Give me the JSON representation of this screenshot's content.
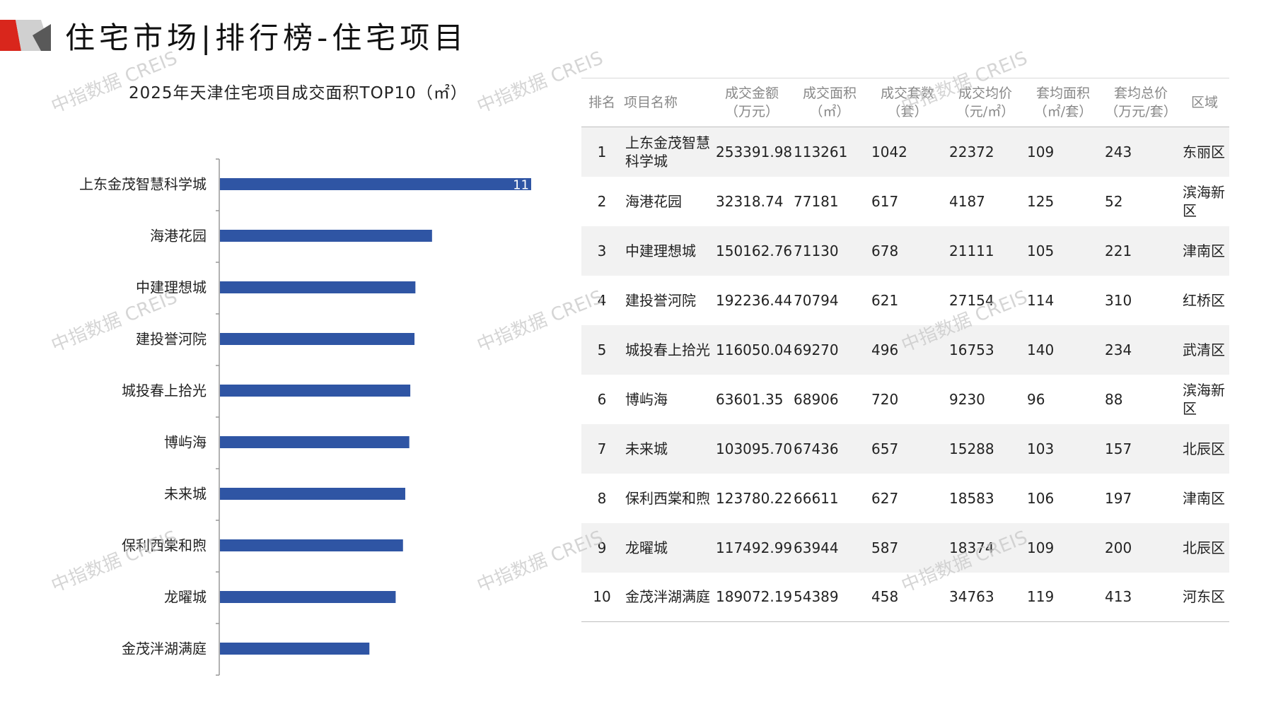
{
  "header": {
    "title": "住宅市场|排行榜-住宅项目",
    "logo_colors": {
      "red": "#d9261c",
      "gray": "#a6a6a6",
      "dark": "#595959"
    }
  },
  "watermark": {
    "text": "中指数据 CREIS"
  },
  "chart_data": {
    "type": "bar",
    "orientation": "horizontal",
    "title": "2025年天津住宅项目成交面积TOP10（㎡）",
    "categories": [
      "上东金茂智慧科学城",
      "海港花园",
      "中建理想城",
      "建投誉河院",
      "城投春上拾光",
      "博屿海",
      "未来城",
      "保利西棠和煦",
      "龙曜城",
      "金茂泮湖满庭"
    ],
    "values": [
      113261,
      77181,
      71130,
      70794,
      69270,
      68906,
      67436,
      66611,
      63944,
      54389
    ],
    "xlim": [
      0,
      113261
    ],
    "data_labels": [
      "11",
      "",
      "",
      "",
      "",
      "",
      "",
      "",
      "",
      ""
    ],
    "bar_color": "#2f55a4",
    "grid": false,
    "legend": "none"
  },
  "table": {
    "headers": [
      {
        "line1": "排名",
        "line2": ""
      },
      {
        "line1": "项目名称",
        "line2": ""
      },
      {
        "line1": "成交金额",
        "line2": "（万元）"
      },
      {
        "line1": "成交面积",
        "line2": "（㎡）"
      },
      {
        "line1": "成交套数",
        "line2": "（套）"
      },
      {
        "line1": "成交均价",
        "line2": "（元/㎡）"
      },
      {
        "line1": "套均面积",
        "line2": "（㎡/套）"
      },
      {
        "line1": "套均总价",
        "line2": "（万元/套）"
      },
      {
        "line1": "区域",
        "line2": ""
      }
    ],
    "rows": [
      {
        "rank": "1",
        "name": "上东金茂智慧科学城",
        "amount": "253391.98",
        "area": "113261",
        "units": "1042",
        "price": "22372",
        "avg_area": "109",
        "avg_total": "243",
        "region": "东丽区"
      },
      {
        "rank": "2",
        "name": "海港花园",
        "amount": "32318.74",
        "area": "77181",
        "units": "617",
        "price": "4187",
        "avg_area": "125",
        "avg_total": "52",
        "region": "滨海新区"
      },
      {
        "rank": "3",
        "name": "中建理想城",
        "amount": "150162.76",
        "area": "71130",
        "units": "678",
        "price": "21111",
        "avg_area": "105",
        "avg_total": "221",
        "region": "津南区"
      },
      {
        "rank": "4",
        "name": "建投誉河院",
        "amount": "192236.44",
        "area": "70794",
        "units": "621",
        "price": "27154",
        "avg_area": "114",
        "avg_total": "310",
        "region": "红桥区"
      },
      {
        "rank": "5",
        "name": "城投春上拾光",
        "amount": "116050.04",
        "area": "69270",
        "units": "496",
        "price": "16753",
        "avg_area": "140",
        "avg_total": "234",
        "region": "武清区"
      },
      {
        "rank": "6",
        "name": "博屿海",
        "amount": "63601.35",
        "area": "68906",
        "units": "720",
        "price": "9230",
        "avg_area": "96",
        "avg_total": "88",
        "region": "滨海新区"
      },
      {
        "rank": "7",
        "name": "未来城",
        "amount": "103095.70",
        "area": "67436",
        "units": "657",
        "price": "15288",
        "avg_area": "103",
        "avg_total": "157",
        "region": "北辰区"
      },
      {
        "rank": "8",
        "name": "保利西棠和煦",
        "amount": "123780.22",
        "area": "66611",
        "units": "627",
        "price": "18583",
        "avg_area": "106",
        "avg_total": "197",
        "region": "津南区"
      },
      {
        "rank": "9",
        "name": "龙曜城",
        "amount": "117492.99",
        "area": "63944",
        "units": "587",
        "price": "18374",
        "avg_area": "109",
        "avg_total": "200",
        "region": "北辰区"
      },
      {
        "rank": "10",
        "name": "金茂泮湖满庭",
        "amount": "189072.19",
        "area": "54389",
        "units": "458",
        "price": "34763",
        "avg_area": "119",
        "avg_total": "413",
        "region": "河东区"
      }
    ]
  }
}
